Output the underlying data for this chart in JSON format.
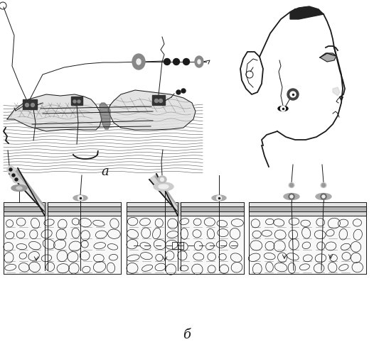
{
  "label_a": "а",
  "label_b": "б",
  "bg_color": "#ffffff",
  "fig_width": 5.26,
  "fig_height": 4.82,
  "dpi": 100,
  "lw_main": 1.3,
  "lw_thin": 0.7,
  "color_main": "#1a1a1a",
  "color_gray": "#666666",
  "color_light": "#aaaaaa"
}
